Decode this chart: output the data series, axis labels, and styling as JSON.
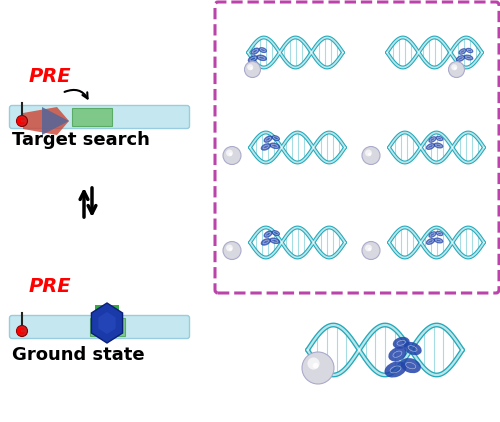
{
  "background_color": "#ffffff",
  "target_search_label": "Target search",
  "ground_state_label": "Ground state",
  "pre_label": "PRE",
  "pre_color": "#ff0000",
  "label_fontsize": 13,
  "pre_fontsize": 14,
  "dna_bar_color": "#c5e8f0",
  "dna_bar_edge": "#99cce0",
  "target_box_color": "#7ec88a",
  "target_box_edge": "#5aab66",
  "dashed_box_color": "#bb44aa",
  "dna_color": "#22aabb",
  "dna_white": "#ffffff",
  "protein_blue": "#2244aa",
  "protein_blue2": "#3355cc",
  "sphere_color": "#d8d8e0",
  "sphere_edge": "#aaaacc"
}
